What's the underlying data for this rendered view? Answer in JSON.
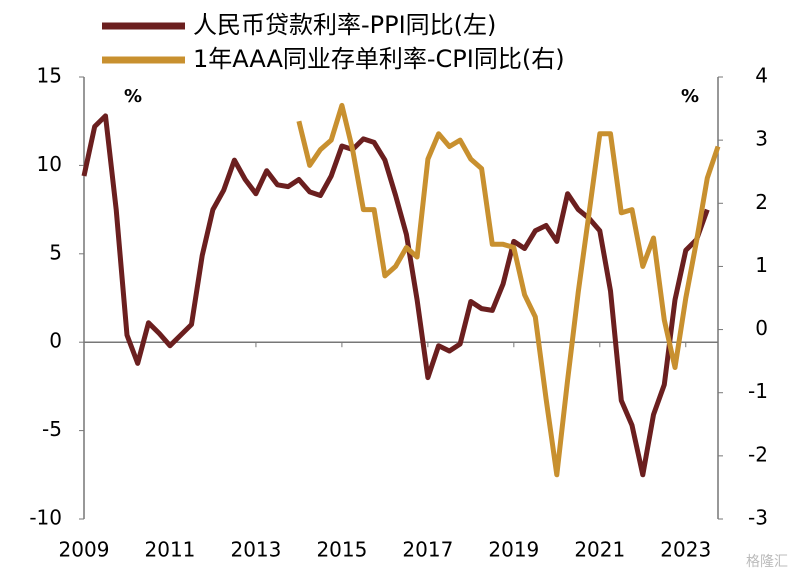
{
  "chart_data": {
    "type": "line",
    "series": [
      {
        "name": "人民币贷款利率-PPI同比(左)",
        "color": "#6b1f1f",
        "x": [
          2009,
          2009.25,
          2009.5,
          2009.75,
          2010,
          2010.25,
          2010.5,
          2010.75,
          2011,
          2011.25,
          2011.5,
          2011.75,
          2012,
          2012.25,
          2012.5,
          2012.75,
          2013,
          2013.25,
          2013.5,
          2013.75,
          2014,
          2014.25,
          2014.5,
          2014.75,
          2015,
          2015.25,
          2015.5,
          2015.75,
          2016,
          2016.25,
          2016.5,
          2016.75,
          2017,
          2017.25,
          2017.5,
          2017.75,
          2018,
          2018.25,
          2018.5,
          2018.75,
          2019,
          2019.25,
          2019.5,
          2019.75,
          2020,
          2020.25,
          2020.5,
          2020.75,
          2021,
          2021.25,
          2021.5,
          2021.75,
          2022,
          2022.25,
          2022.5,
          2022.75,
          2023,
          2023.25,
          2023.5
        ],
        "values": [
          9.4,
          12.2,
          12.8,
          7.5,
          0.4,
          -1.2,
          1.1,
          0.5,
          -0.2,
          0.4,
          1.0,
          4.9,
          7.5,
          8.6,
          10.3,
          9.2,
          8.4,
          9.7,
          8.9,
          8.8,
          9.2,
          8.5,
          8.3,
          9.4,
          11.1,
          10.9,
          11.5,
          11.3,
          10.3,
          8.3,
          6.1,
          2.4,
          -2.0,
          -0.2,
          -0.5,
          -0.1,
          2.3,
          1.9,
          1.8,
          3.3,
          5.7,
          5.3,
          6.3,
          6.6,
          5.7,
          8.4,
          7.5,
          7.0,
          6.3,
          2.9,
          -3.3,
          -4.7,
          -7.5,
          -4.1,
          -2.4,
          2.4,
          5.2,
          5.8,
          7.5
        ]
      },
      {
        "name": "1年AAA同业存单利率-CPI同比(右)",
        "color": "#c8902f",
        "axis": "y2",
        "x": [
          2014,
          2014.25,
          2014.5,
          2014.75,
          2015,
          2015.25,
          2015.5,
          2015.75,
          2016,
          2016.25,
          2016.5,
          2016.75,
          2017,
          2017.25,
          2017.5,
          2017.75,
          2018,
          2018.25,
          2018.5,
          2018.75,
          2019,
          2019.25,
          2019.5,
          2019.75,
          2020,
          2020.25,
          2020.5,
          2020.75,
          2021,
          2021.25,
          2021.5,
          2021.75,
          2022,
          2022.25,
          2022.5,
          2022.75,
          2023,
          2023.25,
          2023.5,
          2023.75
        ],
        "values": [
          3.3,
          2.6,
          2.85,
          3.0,
          3.55,
          2.85,
          1.9,
          1.9,
          0.85,
          1.0,
          1.3,
          1.15,
          2.7,
          3.1,
          2.9,
          3.0,
          2.7,
          2.55,
          1.35,
          1.35,
          1.3,
          0.55,
          0.2,
          -1.1,
          -2.3,
          -0.8,
          0.6,
          1.85,
          3.1,
          3.1,
          1.85,
          1.9,
          1.0,
          1.45,
          0.15,
          -0.6,
          0.5,
          1.4,
          2.4,
          2.9
        ]
      }
    ],
    "xlim": [
      2009,
      2023.75
    ],
    "xticks": [
      2009,
      2011,
      2013,
      2015,
      2017,
      2019,
      2021,
      2023
    ],
    "ylim": [
      -10,
      15
    ],
    "yticks": [
      -10,
      -5,
      0,
      5,
      10,
      15
    ],
    "y2lim": [
      -3,
      4
    ],
    "y2ticks": [
      -3,
      -2,
      -1,
      0,
      1,
      2,
      3,
      4
    ],
    "y_unit": "%",
    "y2_unit": "%",
    "watermark": "格隆汇"
  }
}
